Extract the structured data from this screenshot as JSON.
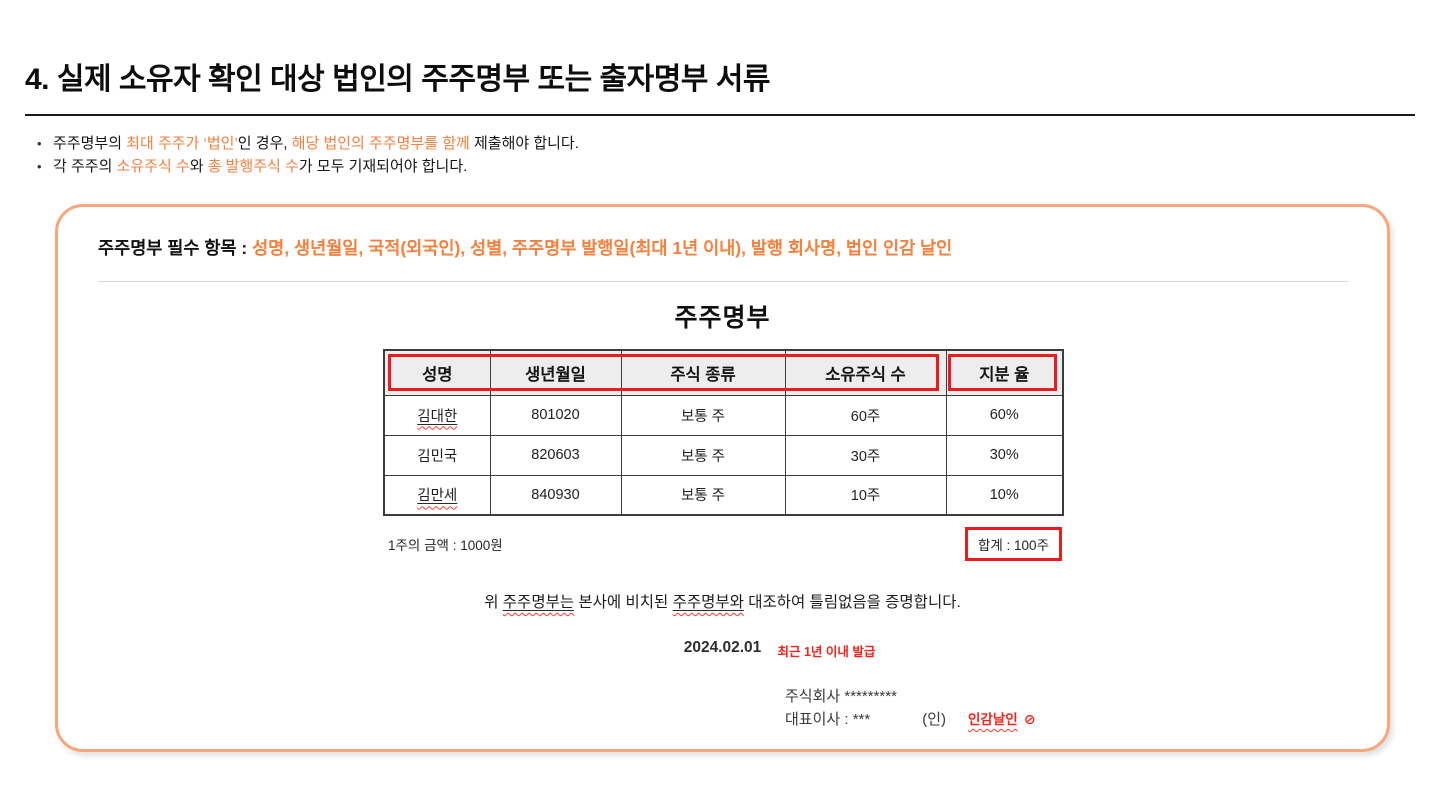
{
  "heading": "4. 실제 소유자 확인 대상 법인의 주주명부 또는 출자명부 서류",
  "intro_bullets": {
    "b1": {
      "s1": "주주명부의 ",
      "s2": "최대 주주가 ‘법인’",
      "s3": "인 경우, ",
      "s4": "해당 법인의 주주명부를 함께",
      "s5": " 제출해야 합니다."
    },
    "b2": {
      "s1": "각 주주의 ",
      "s2": "소유주식 수",
      "s3": "와 ",
      "s4": "총 발행주식 수",
      "s5": "가 모두 기재되어야 합니다."
    }
  },
  "panel": {
    "label": "주주명부 필수 항목 : ",
    "required_items": "성명, 생년월일, 국적(외국인), 성별, 주주명부 발행일(최대 1년 이내), 발행 회사명, 법인 인감 날인"
  },
  "document": {
    "title": "주주명부",
    "table": {
      "headers": [
        "성명",
        "생년월일",
        "주식 종류",
        "소유주식 수",
        "지분 율"
      ],
      "rows": [
        {
          "name": "김대한",
          "birth": "801020",
          "stock_type": "보통 주",
          "shares": "60주",
          "ratio": "60%"
        },
        {
          "name": "김민국",
          "birth": "820603",
          "stock_type": "보통 주",
          "shares": "30주",
          "ratio": "30%"
        },
        {
          "name": "김만세",
          "birth": "840930",
          "stock_type": "보통 주",
          "shares": "10주",
          "ratio": "10%"
        }
      ]
    },
    "per_share_value": "1주의 금액 : 1000원",
    "total": "합계 : 100주",
    "certification": {
      "s1": "위 ",
      "s2": "주주명부는",
      "s3": " 본사에 비치된 ",
      "s4": "주주명부와",
      "s5": " 대조하여 틀림없음을 증명합니다."
    },
    "date": "2024.02.01",
    "date_note": "최근 1년 이내 발급",
    "company": "주식회사 *********",
    "ceo": "대표이사 : ***",
    "seal_paren": "(인)",
    "seal_note": "인감날인",
    "seal_icon": "⊘"
  },
  "colors": {
    "accent_orange": "#f5803e",
    "panel_border": "#f7a77c",
    "mark_red": "#ed1c1c"
  }
}
